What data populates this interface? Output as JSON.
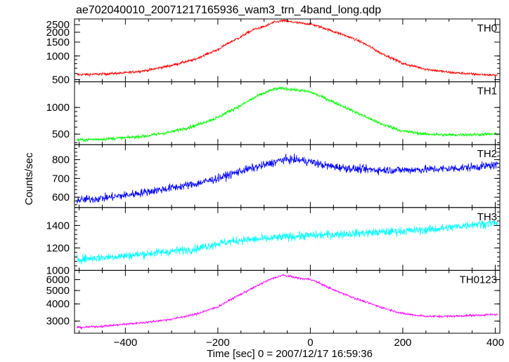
{
  "chart_data": {
    "type": "line",
    "title": "ae702040010_20071217165936_wam3_trn_4band_long.qdp",
    "xlabel": "Time [sec] 0 = 2007/12/17 16:59:36",
    "ylabel": "Counts/sec",
    "xlim": [
      -510,
      410
    ],
    "xticks": [
      -400,
      -200,
      0,
      200,
      400
    ],
    "grid": false,
    "panels": [
      {
        "name": "TH0",
        "color": "#ff0000",
        "scale": "log",
        "ylim": [
          470,
          2950
        ],
        "yticks": [
          500,
          1000,
          1500,
          2000,
          2500
        ],
        "x": [
          -500,
          -450,
          -400,
          -350,
          -300,
          -250,
          -200,
          -150,
          -120,
          -100,
          -80,
          -60,
          -40,
          -20,
          0,
          20,
          50,
          100,
          150,
          200,
          250,
          300,
          350,
          400
        ],
        "values": [
          580,
          590,
          610,
          660,
          760,
          900,
          1200,
          1750,
          2200,
          2350,
          2650,
          2800,
          2700,
          2600,
          2550,
          2350,
          2050,
          1600,
          1100,
          800,
          680,
          620,
          590,
          570
        ],
        "noise": 0.04
      },
      {
        "name": "TH1",
        "color": "#00ff00",
        "scale": "log",
        "ylim": [
          380,
          1950
        ],
        "yticks": [
          500,
          1000
        ],
        "x": [
          -500,
          -450,
          -400,
          -350,
          -300,
          -250,
          -200,
          -150,
          -120,
          -100,
          -80,
          -60,
          -40,
          -20,
          0,
          20,
          50,
          100,
          150,
          200,
          250,
          300,
          350,
          400
        ],
        "values": [
          430,
          440,
          455,
          480,
          530,
          620,
          770,
          1050,
          1300,
          1450,
          1600,
          1650,
          1600,
          1550,
          1500,
          1350,
          1150,
          870,
          660,
          540,
          500,
          490,
          495,
          500
        ],
        "noise": 0.045
      },
      {
        "name": "TH2",
        "color": "#0000ff",
        "scale": "linear",
        "ylim": [
          545,
          880
        ],
        "yticks": [
          600,
          700,
          800
        ],
        "x": [
          -500,
          -450,
          -400,
          -350,
          -300,
          -250,
          -200,
          -150,
          -100,
          -60,
          -30,
          0,
          30,
          60,
          100,
          150,
          200,
          250,
          300,
          350,
          400
        ],
        "values": [
          585,
          595,
          610,
          630,
          650,
          670,
          700,
          740,
          770,
          800,
          800,
          790,
          770,
          760,
          750,
          745,
          745,
          748,
          752,
          760,
          770
        ],
        "noise": 22
      },
      {
        "name": "TH3",
        "color": "#00ffff",
        "scale": "linear",
        "ylim": [
          1000,
          1560
        ],
        "yticks": [
          1000,
          1200,
          1400
        ],
        "x": [
          -500,
          -450,
          -400,
          -350,
          -300,
          -250,
          -200,
          -150,
          -100,
          -50,
          0,
          50,
          100,
          150,
          200,
          250,
          300,
          350,
          400
        ],
        "values": [
          1100,
          1115,
          1130,
          1150,
          1170,
          1190,
          1240,
          1270,
          1280,
          1300,
          1310,
          1320,
          1330,
          1340,
          1350,
          1360,
          1380,
          1410,
          1420
        ],
        "noise": 38
      },
      {
        "name": "TH0123",
        "color": "#ff00ff",
        "scale": "log",
        "ylim": [
          2450,
          7000
        ],
        "yticks": [
          3000,
          4000,
          5000,
          6000
        ],
        "x": [
          -500,
          -450,
          -400,
          -350,
          -300,
          -250,
          -200,
          -150,
          -120,
          -100,
          -80,
          -60,
          -40,
          -20,
          0,
          20,
          50,
          100,
          150,
          200,
          250,
          300,
          350,
          400
        ],
        "values": [
          2700,
          2750,
          2850,
          2950,
          3100,
          3350,
          3800,
          4700,
          5300,
          5750,
          6150,
          6450,
          6300,
          6100,
          6050,
          5650,
          5050,
          4350,
          3800,
          3400,
          3250,
          3250,
          3300,
          3350
        ],
        "noise": 0.018
      }
    ]
  }
}
